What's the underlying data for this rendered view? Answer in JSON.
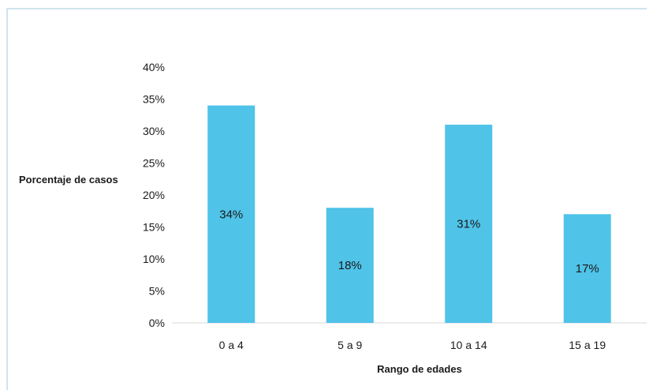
{
  "chart_data": {
    "type": "bar",
    "categories": [
      "0 a 4",
      "5 a 9",
      "10 a 14",
      "15 a 19"
    ],
    "values": [
      34,
      18,
      31,
      17
    ],
    "data_labels": [
      "34%",
      "18%",
      "31%",
      "17%"
    ],
    "title": "",
    "xlabel": "Rango de edades",
    "ylabel": "Porcentaje de casos",
    "ylim": [
      0,
      40
    ],
    "yticks": [
      0,
      5,
      10,
      15,
      20,
      25,
      30,
      35,
      40
    ],
    "ytick_labels": [
      "0%",
      "5%",
      "10%",
      "15%",
      "20%",
      "25%",
      "30%",
      "35%",
      "40%"
    ],
    "grid": false,
    "legend": "none",
    "bar_color": "#4fc3e8"
  }
}
